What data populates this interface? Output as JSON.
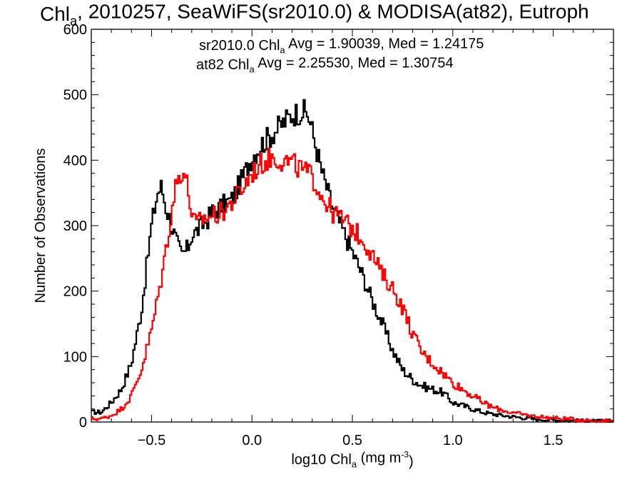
{
  "chart_data": {
    "type": "line",
    "title": {
      "parts": [
        {
          "text": "Chl"
        },
        {
          "text": "a",
          "sub": true
        },
        {
          "text": ", 2010257, SeaWiFS(sr2010.0) & MODISA(at82), Eutroph"
        }
      ]
    },
    "xlabel": {
      "parts": [
        {
          "text": "log10 Chl"
        },
        {
          "text": "a",
          "sub": true
        },
        {
          "text": " (mg m"
        },
        {
          "text": "-3",
          "sup": true
        },
        {
          "text": ")"
        }
      ]
    },
    "ylabel": "Number of Observations",
    "xlim": [
      -0.8,
      1.8
    ],
    "ylim": [
      0,
      600
    ],
    "x_ticks": [
      {
        "value": -0.5,
        "label": "−0.5"
      },
      {
        "value": 0.0,
        "label": "0.0"
      },
      {
        "value": 0.5,
        "label": "0.5"
      },
      {
        "value": 1.0,
        "label": "1.0"
      },
      {
        "value": 1.5,
        "label": "1.5"
      }
    ],
    "y_ticks": [
      {
        "value": 0,
        "label": "0"
      },
      {
        "value": 100,
        "label": "100"
      },
      {
        "value": 200,
        "label": "200"
      },
      {
        "value": 300,
        "label": "300"
      },
      {
        "value": 400,
        "label": "400"
      },
      {
        "value": 500,
        "label": "500"
      },
      {
        "value": 600,
        "label": "600"
      }
    ],
    "grid": false,
    "legend_position": "top-center",
    "series": [
      {
        "name": "sr2010.0",
        "color": "#000000",
        "legend": {
          "parts": [
            {
              "text": "sr2010.0 Chl"
            },
            {
              "text": "a",
              "sub": true
            },
            {
              "text": " Avg = 1.90039, Med = 1.24175"
            }
          ]
        },
        "x": [
          -0.75,
          -0.7,
          -0.65,
          -0.6,
          -0.55,
          -0.5,
          -0.47,
          -0.45,
          -0.43,
          -0.4,
          -0.37,
          -0.35,
          -0.32,
          -0.3,
          -0.28,
          -0.25,
          -0.22,
          -0.2,
          -0.15,
          -0.1,
          -0.05,
          0.0,
          0.05,
          0.1,
          0.15,
          0.2,
          0.25,
          0.28,
          0.3,
          0.35,
          0.4,
          0.45,
          0.5,
          0.55,
          0.6,
          0.65,
          0.7,
          0.75,
          0.8,
          0.85,
          0.9,
          0.95,
          1.0,
          1.05,
          1.1,
          1.15,
          1.2,
          1.3,
          1.4,
          1.5,
          1.6,
          1.7,
          1.8
        ],
        "y": [
          15,
          30,
          50,
          90,
          170,
          300,
          350,
          360,
          330,
          300,
          270,
          255,
          265,
          285,
          290,
          300,
          310,
          320,
          330,
          340,
          370,
          405,
          425,
          440,
          455,
          470,
          475,
          470,
          445,
          380,
          330,
          295,
          260,
          225,
          185,
          150,
          110,
          80,
          65,
          55,
          50,
          45,
          30,
          25,
          20,
          15,
          12,
          8,
          5,
          3,
          2,
          1,
          1
        ]
      },
      {
        "name": "at82",
        "color": "#ff0000",
        "legend": {
          "parts": [
            {
              "text": "at82 Chl"
            },
            {
              "text": "a",
              "sub": true
            },
            {
              "text": " Avg = 2.25530, Med = 1.30754"
            }
          ]
        },
        "x": [
          -0.75,
          -0.7,
          -0.65,
          -0.6,
          -0.55,
          -0.5,
          -0.45,
          -0.42,
          -0.4,
          -0.38,
          -0.35,
          -0.33,
          -0.3,
          -0.28,
          -0.25,
          -0.2,
          -0.15,
          -0.1,
          -0.05,
          0.0,
          0.05,
          0.1,
          0.15,
          0.2,
          0.25,
          0.3,
          0.35,
          0.4,
          0.45,
          0.5,
          0.55,
          0.6,
          0.65,
          0.7,
          0.75,
          0.8,
          0.85,
          0.9,
          0.95,
          1.0,
          1.05,
          1.1,
          1.15,
          1.2,
          1.3,
          1.4,
          1.5,
          1.6,
          1.7,
          1.8
        ],
        "y": [
          5,
          10,
          20,
          40,
          80,
          140,
          220,
          280,
          320,
          360,
          385,
          375,
          320,
          300,
          310,
          315,
          320,
          335,
          355,
          380,
          395,
          405,
          400,
          395,
          385,
          375,
          345,
          320,
          310,
          295,
          280,
          255,
          225,
          205,
          175,
          135,
          105,
          90,
          75,
          60,
          50,
          40,
          30,
          22,
          14,
          9,
          6,
          4,
          2,
          1
        ]
      }
    ]
  }
}
